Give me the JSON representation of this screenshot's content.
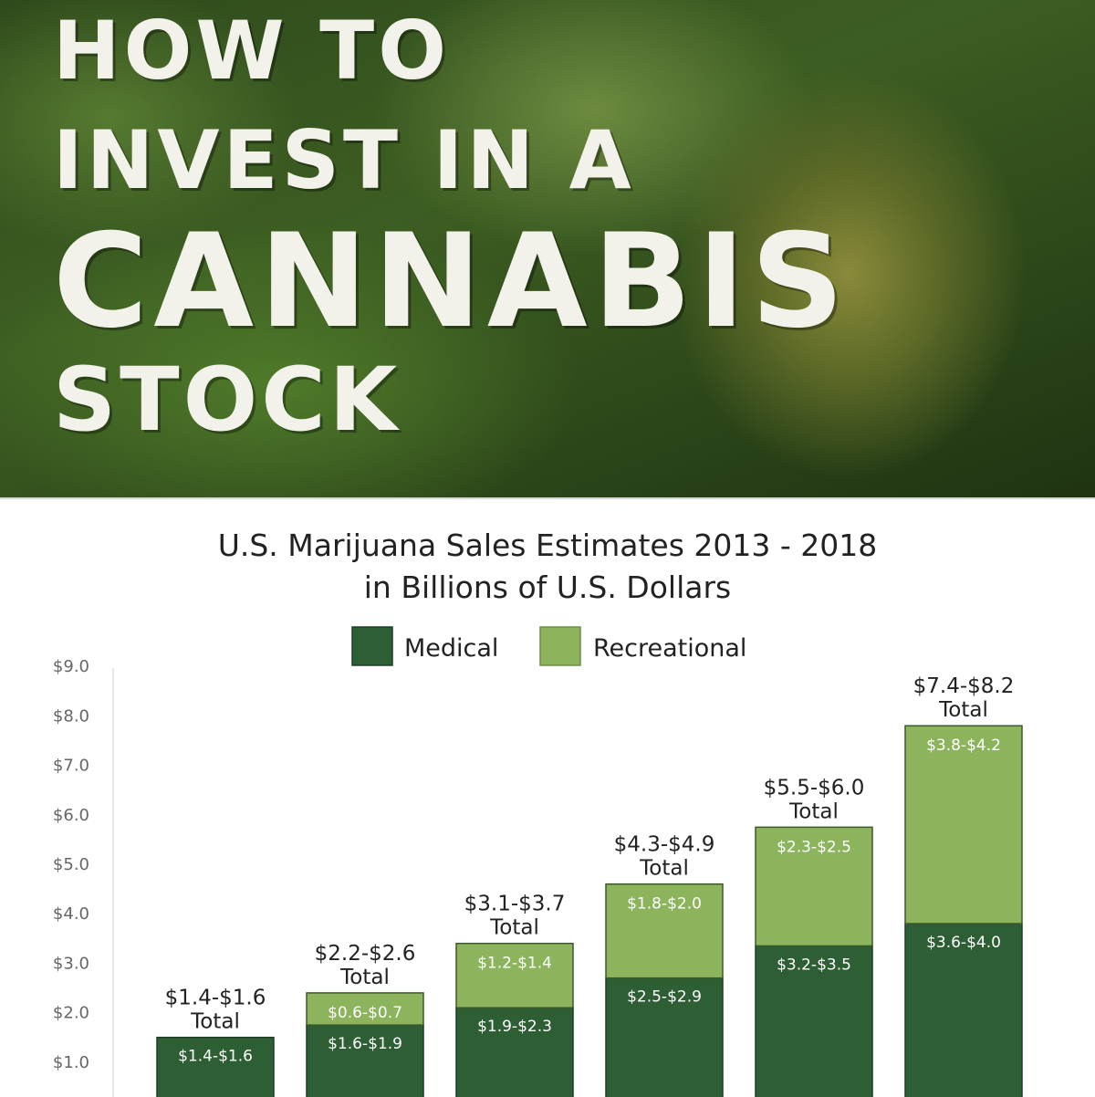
{
  "banner": {
    "lines": [
      "HOW TO",
      "INVEST IN A",
      "CANNABIS",
      "STOCK"
    ]
  },
  "chart_data": {
    "type": "bar",
    "stacked": true,
    "title": "U.S. Marijuana Sales Estimates 2013 - 2018",
    "subtitle": "in Billions of U.S. Dollars",
    "ylim": [
      0,
      9
    ],
    "ytick_labels": [
      "$1.0",
      "$2.0",
      "$3.0",
      "$4.0",
      "$5.0",
      "$6.0",
      "$7.0",
      "$8.0",
      "$9.0"
    ],
    "legend_position": "top-center",
    "series": [
      {
        "name": "Medical",
        "color": "#2e5e34",
        "values": [
          1.5,
          1.75,
          2.1,
          2.7,
          3.35,
          3.8
        ],
        "labels": [
          "$1.4-$1.6",
          "$1.6-$1.9",
          "$1.9-$2.3",
          "$2.5-$2.9",
          "$3.2-$3.5",
          "$3.6-$4.0"
        ]
      },
      {
        "name": "Recreational",
        "color": "#8cb45c",
        "values": [
          0,
          0.65,
          1.3,
          1.9,
          2.4,
          4.0
        ],
        "labels": [
          "",
          "$0.6-$0.7",
          "$1.2-$1.4",
          "$1.8-$2.0",
          "$2.3-$2.5",
          "$3.8-$4.2"
        ]
      }
    ],
    "totals": [
      "$1.4-$1.6",
      "$2.2-$2.6",
      "$3.1-$3.7",
      "$4.3-$4.9",
      "$5.5-$6.0",
      "$7.4-$8.2"
    ],
    "total_suffix": "Total"
  }
}
